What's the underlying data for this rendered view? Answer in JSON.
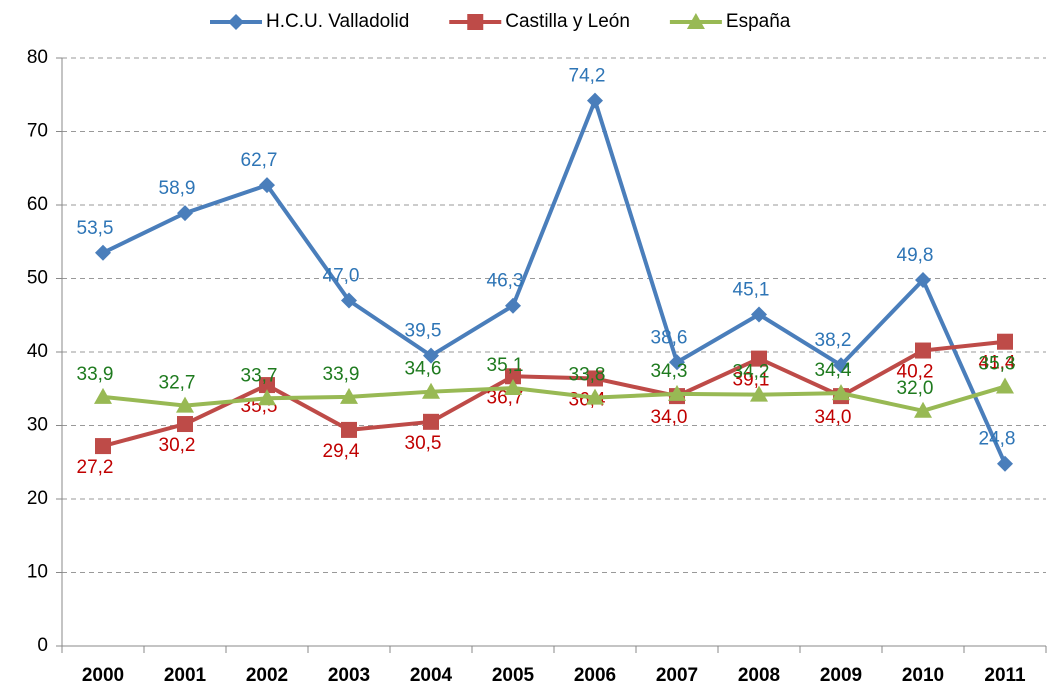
{
  "chart_data": {
    "type": "line",
    "categories": [
      "2000",
      "2001",
      "2002",
      "2003",
      "2004",
      "2005",
      "2006",
      "2007",
      "2008",
      "2009",
      "2010",
      "2011"
    ],
    "ylim": [
      0,
      80
    ],
    "yticks": [
      0,
      10,
      20,
      30,
      40,
      50,
      60,
      70,
      80
    ],
    "grid": true,
    "legend": "top",
    "series": [
      {
        "name": "H.C.U. Valladolid",
        "color": "#4a7ebb",
        "label_color": "#2e75b6",
        "marker": "diamond",
        "values": [
          53.5,
          58.9,
          62.7,
          47.0,
          39.5,
          46.3,
          74.2,
          38.6,
          45.1,
          38.2,
          49.8,
          24.8
        ],
        "value_labels": [
          "53,5",
          "58,9",
          "62,7",
          "47,0",
          "39,5",
          "46,3",
          "74,2",
          "38,6",
          "45,1",
          "38,2",
          "49,8",
          "24,8"
        ]
      },
      {
        "name": "Castilla y León",
        "color": "#be4b48",
        "label_color": "#c00000",
        "marker": "square",
        "values": [
          27.2,
          30.2,
          35.5,
          29.4,
          30.5,
          36.7,
          36.4,
          34.0,
          39.1,
          34.0,
          40.2,
          41.4
        ],
        "value_labels": [
          "27,2",
          "30,2",
          "35,5",
          "29,4",
          "30,5",
          "36,7",
          "36,4",
          "34,0",
          "39,1",
          "34,0",
          "40,2",
          "41,4"
        ]
      },
      {
        "name": "España",
        "color": "#98b954",
        "label_color": "#1e7a1e",
        "marker": "triangle",
        "values": [
          33.9,
          32.7,
          33.7,
          33.9,
          34.6,
          35.1,
          33.8,
          34.3,
          34.2,
          34.4,
          32.0,
          35.3
        ],
        "value_labels": [
          "33,9",
          "32,7",
          "33,7",
          "33,9",
          "34,6",
          "35,1",
          "33,8",
          "34,3",
          "34,2",
          "34,4",
          "32,0",
          "35,3"
        ]
      }
    ]
  }
}
